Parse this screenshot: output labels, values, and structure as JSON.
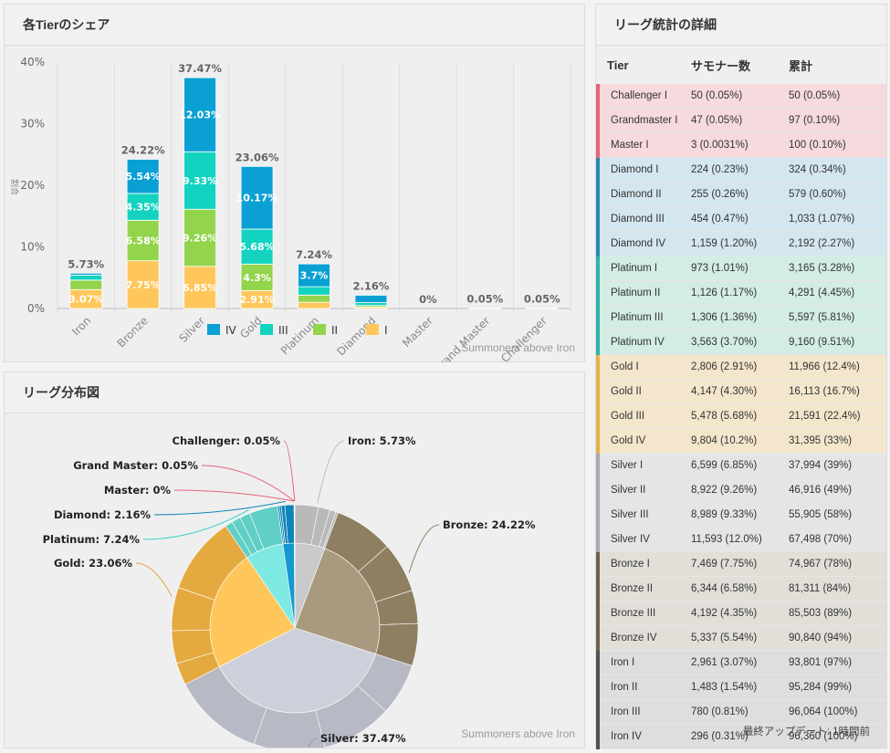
{
  "bar_panel": {
    "title": "各Tierのシェア",
    "credit": "Summoners above Iron"
  },
  "pie_panel": {
    "title": "リーグ分布図",
    "credit": "Summoners above Iron"
  },
  "table_panel": {
    "title": "リーグ統計の詳細",
    "headers": [
      "Tier",
      "サモナー数",
      "累計"
    ],
    "footer": "最終アップデート: 1時間前",
    "rows": [
      {
        "tier": "Challenger I",
        "count": "50 (0.05%)",
        "cum": "50 (0.05%)",
        "color": "#e8627a",
        "bg": "#f6dadd"
      },
      {
        "tier": "Grandmaster I",
        "count": "47 (0.05%)",
        "cum": "97 (0.10%)",
        "color": "#e8627a",
        "bg": "#f6dadd"
      },
      {
        "tier": "Master I",
        "count": "3 (0.0031%)",
        "cum": "100 (0.10%)",
        "color": "#e8627a",
        "bg": "#f6dadd"
      },
      {
        "tier": "Diamond I",
        "count": "224 (0.23%)",
        "cum": "324 (0.34%)",
        "color": "#2a86b3",
        "bg": "#d4e6ef"
      },
      {
        "tier": "Diamond II",
        "count": "255 (0.26%)",
        "cum": "579 (0.60%)",
        "color": "#2a86b3",
        "bg": "#d4e6ef"
      },
      {
        "tier": "Diamond III",
        "count": "454 (0.47%)",
        "cum": "1,033 (1.07%)",
        "color": "#2a86b3",
        "bg": "#d4e6ef"
      },
      {
        "tier": "Diamond IV",
        "count": "1,159 (1.20%)",
        "cum": "2,192 (2.27%)",
        "color": "#2a86b3",
        "bg": "#d4e6ef"
      },
      {
        "tier": "Platinum I",
        "count": "973 (1.01%)",
        "cum": "3,165 (3.28%)",
        "color": "#2bb7a3",
        "bg": "#d3ece6"
      },
      {
        "tier": "Platinum II",
        "count": "1,126 (1.17%)",
        "cum": "4,291 (4.45%)",
        "color": "#2bb7a3",
        "bg": "#d3ece6"
      },
      {
        "tier": "Platinum III",
        "count": "1,306 (1.36%)",
        "cum": "5,597 (5.81%)",
        "color": "#2bb7a3",
        "bg": "#d3ece6"
      },
      {
        "tier": "Platinum IV",
        "count": "3,563 (3.70%)",
        "cum": "9,160 (9.51%)",
        "color": "#2bb7a3",
        "bg": "#d3ece6"
      },
      {
        "tier": "Gold I",
        "count": "2,806 (2.91%)",
        "cum": "11,966 (12.4%)",
        "color": "#e7b14c",
        "bg": "#f3e6cc"
      },
      {
        "tier": "Gold II",
        "count": "4,147 (4.30%)",
        "cum": "16,113 (16.7%)",
        "color": "#e7b14c",
        "bg": "#f3e6cc"
      },
      {
        "tier": "Gold III",
        "count": "5,478 (5.68%)",
        "cum": "21,591 (22.4%)",
        "color": "#e7b14c",
        "bg": "#f3e6cc"
      },
      {
        "tier": "Gold IV",
        "count": "9,804 (10.2%)",
        "cum": "31,395 (33%)",
        "color": "#e7b14c",
        "bg": "#f3e6cc"
      },
      {
        "tier": "Silver I",
        "count": "6,599 (6.85%)",
        "cum": "37,994 (39%)",
        "color": "#a7a9b3",
        "bg": "#e5e5e7"
      },
      {
        "tier": "Silver II",
        "count": "8,922 (9.26%)",
        "cum": "46,916 (49%)",
        "color": "#a7a9b3",
        "bg": "#e5e5e7"
      },
      {
        "tier": "Silver III",
        "count": "8,989 (9.33%)",
        "cum": "55,905 (58%)",
        "color": "#a7a9b3",
        "bg": "#e5e5e7"
      },
      {
        "tier": "Silver IV",
        "count": "11,593 (12.0%)",
        "cum": "67,498 (70%)",
        "color": "#a7a9b3",
        "bg": "#e5e5e7"
      },
      {
        "tier": "Bronze I",
        "count": "7,469 (7.75%)",
        "cum": "74,967 (78%)",
        "color": "#6e5f49",
        "bg": "#e1dfd8"
      },
      {
        "tier": "Bronze II",
        "count": "6,344 (6.58%)",
        "cum": "81,311 (84%)",
        "color": "#6e5f49",
        "bg": "#e1dfd8"
      },
      {
        "tier": "Bronze III",
        "count": "4,192 (4.35%)",
        "cum": "85,503 (89%)",
        "color": "#6e5f49",
        "bg": "#e1dfd8"
      },
      {
        "tier": "Bronze IV",
        "count": "5,337 (5.54%)",
        "cum": "90,840 (94%)",
        "color": "#6e5f49",
        "bg": "#e1dfd8"
      },
      {
        "tier": "Iron I",
        "count": "2,961 (3.07%)",
        "cum": "93,801 (97%)",
        "color": "#4f5354",
        "bg": "#dddedd"
      },
      {
        "tier": "Iron II",
        "count": "1,483 (1.54%)",
        "cum": "95,284 (99%)",
        "color": "#4f5354",
        "bg": "#dddedd"
      },
      {
        "tier": "Iron III",
        "count": "780 (0.81%)",
        "cum": "96,064 (100%)",
        "color": "#4f5354",
        "bg": "#dddedd"
      },
      {
        "tier": "Iron IV",
        "count": "296 (0.31%)",
        "cum": "96,360 (100%)",
        "color": "#4f5354",
        "bg": "#dddedd"
      }
    ]
  },
  "chart_data": [
    {
      "type": "bar",
      "stacked": true,
      "categories": [
        "Iron",
        "Bronze",
        "Silver",
        "Gold",
        "Platinum",
        "Diamond",
        "Master",
        "Grand Master",
        "Challenger"
      ],
      "totals": [
        "5.73%",
        "24.22%",
        "37.47%",
        "23.06%",
        "7.24%",
        "2.16%",
        "0%",
        "0.05%",
        "0.05%"
      ],
      "total_values": [
        5.73,
        24.22,
        37.47,
        23.06,
        7.24,
        2.16,
        0,
        0.05,
        0.05
      ],
      "ylabel": "割合",
      "yticks": [
        "0%",
        "10%",
        "20%",
        "30%",
        "40%"
      ],
      "ylim": [
        0,
        40
      ],
      "legend_position": "bottom-center",
      "series": [
        {
          "name": "IV",
          "color": "#0ba0d4",
          "values": [
            0.31,
            5.54,
            12.03,
            10.17,
            3.7,
            1.2,
            0,
            0,
            0
          ],
          "labels": [
            "",
            "5.54%",
            "12.03%",
            "10.17%",
            "3.7%",
            "",
            "",
            "",
            ""
          ]
        },
        {
          "name": "III",
          "color": "#13d3c0",
          "values": [
            0.81,
            4.35,
            9.33,
            5.68,
            1.36,
            0.47,
            0,
            0,
            0
          ],
          "labels": [
            "",
            "4.35%",
            "9.33%",
            "5.68%",
            "",
            "",
            "",
            "",
            ""
          ]
        },
        {
          "name": "II",
          "color": "#92d44c",
          "values": [
            1.54,
            6.58,
            9.26,
            4.3,
            1.17,
            0.26,
            0,
            0,
            0
          ],
          "labels": [
            "",
            "6.58%",
            "9.26%",
            "4.3%",
            "",
            "",
            "",
            "",
            ""
          ]
        },
        {
          "name": "I",
          "color": "#ffc75b",
          "values": [
            3.07,
            7.75,
            6.85,
            2.91,
            1.01,
            0.23,
            0,
            0.05,
            0.05
          ],
          "labels": [
            "3.07%",
            "7.75%",
            "6.85%",
            "2.91%",
            "",
            "",
            "",
            "",
            ""
          ]
        }
      ]
    },
    {
      "type": "pie",
      "labels": [
        "Iron: 5.73%",
        "Bronze: 24.22%",
        "Silver: 37.47%",
        "Gold: 23.06%",
        "Platinum: 7.24%",
        "Diamond: 2.16%",
        "Master: 0%",
        "Grand Master: 0.05%",
        "Challenger: 0.05%"
      ],
      "values": [
        5.73,
        24.22,
        37.47,
        23.06,
        7.24,
        2.16,
        0,
        0.05,
        0.05
      ],
      "inner_colors": [
        "#cacaca",
        "#a79a7e",
        "#cdd0da",
        "#ffc75b",
        "#7ee8e2",
        "#1399cf",
        "#ee7c8a",
        "#ee7c8a",
        "#ee7c8a"
      ],
      "outer_colors": [
        "#b9b9b9",
        "#8e7f63",
        "#b7b9c4",
        "#e4a93f",
        "#60cfc6",
        "#0f84b9",
        "#e8627a",
        "#e8627a",
        "#e8627a"
      ],
      "sub_values": [
        [
          3.07,
          1.54,
          0.81,
          0.31
        ],
        [
          7.75,
          6.58,
          4.35,
          5.54
        ],
        [
          6.85,
          9.26,
          9.33,
          12.03
        ],
        [
          2.91,
          4.3,
          5.68,
          10.17
        ],
        [
          1.01,
          1.17,
          1.36,
          3.7
        ],
        [
          0.23,
          0.26,
          0.47,
          1.2
        ],
        [
          0
        ],
        [
          0.05
        ],
        [
          0.05
        ]
      ]
    }
  ]
}
